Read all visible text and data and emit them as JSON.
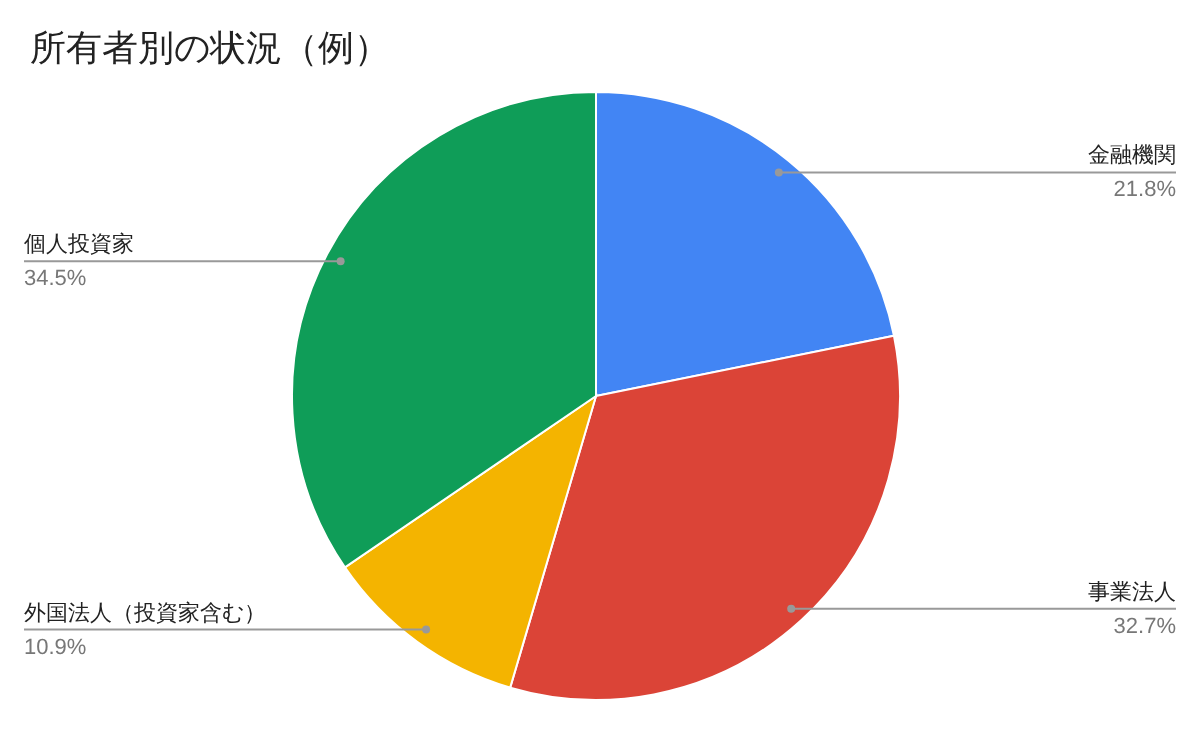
{
  "chart_data": {
    "type": "pie",
    "title": "所有者別の状況（例）",
    "categories": [
      "金融機関",
      "事業法人",
      "外国法人（投資家含む）",
      "個人投資家"
    ],
    "values": [
      21.8,
      32.7,
      10.9,
      34.5
    ],
    "colors": [
      "#4285f4",
      "#db4437",
      "#f4b400",
      "#0f9d58"
    ],
    "value_labels": [
      "21.8%",
      "32.7%",
      "10.9%",
      "34.5%"
    ]
  }
}
